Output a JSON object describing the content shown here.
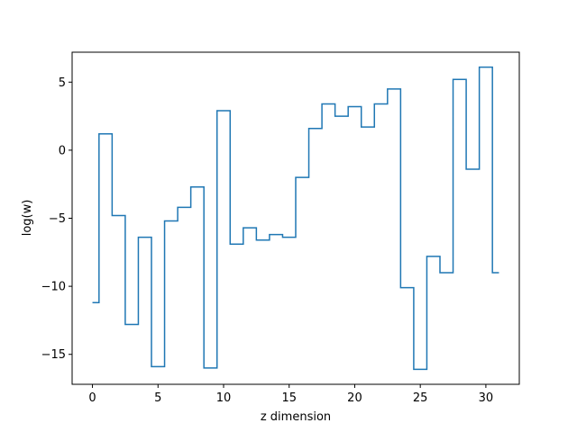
{
  "chart_data": {
    "type": "line",
    "drawstyle": "steps-mid",
    "title": "",
    "xlabel": "z dimension",
    "ylabel": "log(w)",
    "xlim": [
      -1.55,
      32.55
    ],
    "ylim": [
      -17.2,
      7.2
    ],
    "xticks": [
      0,
      5,
      10,
      15,
      20,
      25,
      30
    ],
    "yticks": [
      -15,
      -10,
      -5,
      0,
      5
    ],
    "grid": false,
    "legend": "none",
    "line_color": "#1f77b4",
    "series": [
      {
        "x": [
          0,
          1,
          2,
          3,
          4,
          5,
          6,
          7,
          8,
          9,
          10,
          11,
          12,
          13,
          14,
          15,
          16,
          17,
          18,
          19,
          20,
          21,
          22,
          23,
          24,
          25,
          26,
          27,
          28,
          29,
          30,
          31
        ],
        "values": [
          -11.2,
          1.2,
          -4.8,
          -12.8,
          -6.4,
          -15.9,
          -5.2,
          -4.2,
          -2.7,
          -16.0,
          2.9,
          -6.9,
          -5.7,
          -6.6,
          -6.2,
          -6.4,
          -2.0,
          1.6,
          3.4,
          2.5,
          3.2,
          1.7,
          3.4,
          4.5,
          -10.1,
          -16.1,
          -7.8,
          -9.0,
          5.2,
          -1.4,
          6.1,
          -9.0
        ]
      }
    ]
  }
}
